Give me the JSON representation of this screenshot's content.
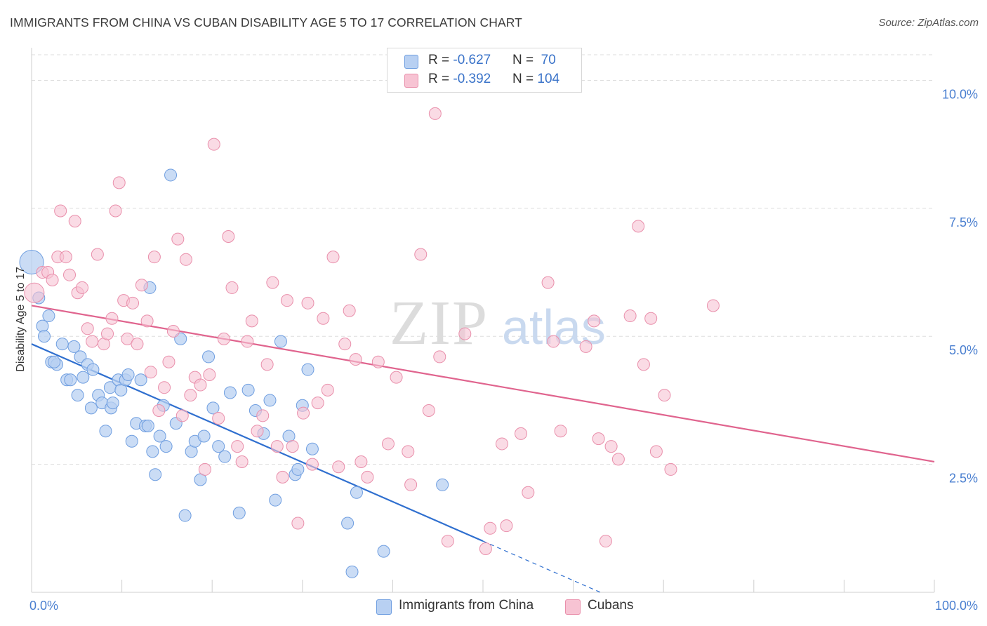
{
  "title": "IMMIGRANTS FROM CHINA VS CUBAN DISABILITY AGE 5 TO 17 CORRELATION CHART",
  "source": "Source: ZipAtlas.com",
  "watermark": {
    "zip": "ZIP",
    "atlas": "atlas"
  },
  "legend": {
    "china": {
      "r_label": "R = ",
      "r_value": "-0.627",
      "n_label": "N = ",
      "n_value": " 70"
    },
    "cuban": {
      "r_label": "R = ",
      "r_value": "-0.392",
      "n_label": "N = ",
      "n_value": "104"
    }
  },
  "bottom_legend": {
    "china": "Immigrants from China",
    "cuban": "Cubans"
  },
  "colors": {
    "china_fill": "#b8d0f2",
    "china_stroke": "#6f9ee0",
    "china_line": "#2f6fcf",
    "cuban_fill": "#f7c3d3",
    "cuban_stroke": "#e98fab",
    "cuban_line": "#e0648e",
    "tick_text": "#4a7fd0",
    "grid": "#dddddd"
  },
  "chart_data": {
    "type": "scatter",
    "title": "IMMIGRANTS FROM CHINA VS CUBAN DISABILITY AGE 5 TO 17 CORRELATION CHART",
    "xlabel": "",
    "ylabel": "Disability Age 5 to 17",
    "xlim": [
      0,
      100
    ],
    "ylim": [
      0,
      10.5
    ],
    "x_tick_labels": [
      "0.0%",
      "100.0%"
    ],
    "y_ticks": [
      2.5,
      5.0,
      7.5,
      10.0
    ],
    "y_tick_labels": [
      "2.5%",
      "5.0%",
      "7.5%",
      "10.0%"
    ],
    "grid": true,
    "legend_position": "top-center",
    "series": [
      {
        "name": "Immigrants from China",
        "r": -0.627,
        "n": 70,
        "trend": {
          "x0": 0,
          "y0": 4.85,
          "x1": 50,
          "y1": 1.0,
          "dashed_to_x": 63,
          "dashed_to_y": 0.0
        },
        "points": [
          [
            0.0,
            6.45
          ],
          [
            0.8,
            5.75
          ],
          [
            1.2,
            5.2
          ],
          [
            1.4,
            5.0
          ],
          [
            1.9,
            5.4
          ],
          [
            2.2,
            4.5
          ],
          [
            2.8,
            4.45
          ],
          [
            3.4,
            4.85
          ],
          [
            3.9,
            4.15
          ],
          [
            4.3,
            4.15
          ],
          [
            4.7,
            4.8
          ],
          [
            5.1,
            3.85
          ],
          [
            5.4,
            4.6
          ],
          [
            5.7,
            4.2
          ],
          [
            6.2,
            4.45
          ],
          [
            6.6,
            3.6
          ],
          [
            6.8,
            4.35
          ],
          [
            7.4,
            3.85
          ],
          [
            7.8,
            3.7
          ],
          [
            8.2,
            3.15
          ],
          [
            8.7,
            4.0
          ],
          [
            8.8,
            3.6
          ],
          [
            9.0,
            3.7
          ],
          [
            9.6,
            4.15
          ],
          [
            9.9,
            3.95
          ],
          [
            10.4,
            4.15
          ],
          [
            10.7,
            4.25
          ],
          [
            11.1,
            2.95
          ],
          [
            11.6,
            3.3
          ],
          [
            12.1,
            4.15
          ],
          [
            12.6,
            3.25
          ],
          [
            12.9,
            3.25
          ],
          [
            13.1,
            5.95
          ],
          [
            13.4,
            2.75
          ],
          [
            13.7,
            2.3
          ],
          [
            14.2,
            3.05
          ],
          [
            14.6,
            3.65
          ],
          [
            14.9,
            2.85
          ],
          [
            15.4,
            8.15
          ],
          [
            16.0,
            3.3
          ],
          [
            16.5,
            4.95
          ],
          [
            17.0,
            1.5
          ],
          [
            17.7,
            2.75
          ],
          [
            18.1,
            2.95
          ],
          [
            18.7,
            2.2
          ],
          [
            19.1,
            3.05
          ],
          [
            19.6,
            4.6
          ],
          [
            20.1,
            3.6
          ],
          [
            20.7,
            2.85
          ],
          [
            21.4,
            2.65
          ],
          [
            22.0,
            3.9
          ],
          [
            23.0,
            1.55
          ],
          [
            24.0,
            3.95
          ],
          [
            24.8,
            3.55
          ],
          [
            25.7,
            3.1
          ],
          [
            26.4,
            3.75
          ],
          [
            27.0,
            1.8
          ],
          [
            27.6,
            4.9
          ],
          [
            28.5,
            3.05
          ],
          [
            29.2,
            2.3
          ],
          [
            29.5,
            2.4
          ],
          [
            30.0,
            3.65
          ],
          [
            30.6,
            4.35
          ],
          [
            31.1,
            2.8
          ],
          [
            35.0,
            1.35
          ],
          [
            35.5,
            0.4
          ],
          [
            36.0,
            1.95
          ],
          [
            39.0,
            0.8
          ],
          [
            45.5,
            2.1
          ],
          [
            2.5,
            4.5
          ]
        ]
      },
      {
        "name": "Cubans",
        "r": -0.392,
        "n": 104,
        "trend": {
          "x0": 0,
          "y0": 5.6,
          "x1": 100,
          "y1": 2.55
        },
        "points": [
          [
            0.3,
            5.85
          ],
          [
            1.2,
            6.25
          ],
          [
            1.8,
            6.25
          ],
          [
            2.3,
            6.1
          ],
          [
            2.9,
            6.55
          ],
          [
            3.2,
            7.45
          ],
          [
            3.8,
            6.55
          ],
          [
            4.2,
            6.2
          ],
          [
            4.8,
            7.25
          ],
          [
            5.1,
            5.85
          ],
          [
            5.6,
            5.95
          ],
          [
            6.2,
            5.15
          ],
          [
            6.7,
            4.9
          ],
          [
            7.3,
            6.6
          ],
          [
            8.0,
            4.85
          ],
          [
            8.4,
            5.05
          ],
          [
            8.9,
            5.35
          ],
          [
            9.3,
            7.45
          ],
          [
            9.7,
            8.0
          ],
          [
            10.2,
            5.7
          ],
          [
            10.6,
            4.95
          ],
          [
            11.2,
            5.65
          ],
          [
            11.7,
            4.85
          ],
          [
            12.2,
            6.0
          ],
          [
            12.8,
            5.3
          ],
          [
            13.2,
            4.3
          ],
          [
            13.6,
            6.55
          ],
          [
            14.1,
            3.55
          ],
          [
            14.7,
            4.0
          ],
          [
            15.2,
            4.5
          ],
          [
            15.7,
            5.1
          ],
          [
            16.2,
            6.9
          ],
          [
            16.7,
            3.45
          ],
          [
            17.1,
            6.5
          ],
          [
            17.6,
            3.85
          ],
          [
            18.1,
            4.2
          ],
          [
            18.7,
            4.05
          ],
          [
            19.2,
            2.4
          ],
          [
            19.7,
            4.25
          ],
          [
            20.2,
            8.75
          ],
          [
            20.7,
            3.4
          ],
          [
            21.3,
            4.95
          ],
          [
            21.8,
            6.95
          ],
          [
            22.2,
            5.95
          ],
          [
            22.8,
            2.85
          ],
          [
            23.3,
            2.55
          ],
          [
            23.9,
            4.9
          ],
          [
            24.4,
            5.3
          ],
          [
            25.0,
            3.15
          ],
          [
            25.6,
            3.45
          ],
          [
            26.1,
            4.45
          ],
          [
            26.7,
            6.05
          ],
          [
            27.2,
            2.85
          ],
          [
            27.8,
            2.25
          ],
          [
            28.3,
            5.7
          ],
          [
            28.9,
            2.85
          ],
          [
            29.5,
            1.35
          ],
          [
            30.1,
            3.5
          ],
          [
            30.6,
            5.65
          ],
          [
            31.1,
            2.5
          ],
          [
            31.7,
            3.7
          ],
          [
            32.3,
            5.35
          ],
          [
            32.8,
            3.95
          ],
          [
            33.4,
            6.55
          ],
          [
            34.0,
            2.45
          ],
          [
            34.7,
            4.85
          ],
          [
            35.2,
            5.5
          ],
          [
            35.9,
            4.55
          ],
          [
            36.5,
            2.55
          ],
          [
            37.2,
            2.25
          ],
          [
            38.4,
            4.5
          ],
          [
            39.5,
            2.9
          ],
          [
            40.4,
            4.2
          ],
          [
            41.7,
            2.75
          ],
          [
            42.0,
            2.1
          ],
          [
            43.1,
            6.6
          ],
          [
            44.0,
            3.55
          ],
          [
            44.7,
            9.35
          ],
          [
            45.2,
            4.6
          ],
          [
            46.1,
            1.0
          ],
          [
            48.0,
            5.05
          ],
          [
            50.3,
            0.85
          ],
          [
            50.8,
            1.25
          ],
          [
            52.1,
            2.9
          ],
          [
            52.6,
            1.3
          ],
          [
            54.2,
            3.1
          ],
          [
            55.0,
            1.95
          ],
          [
            57.2,
            6.05
          ],
          [
            57.8,
            4.9
          ],
          [
            58.6,
            3.15
          ],
          [
            61.4,
            4.8
          ],
          [
            62.3,
            5.3
          ],
          [
            62.8,
            3.0
          ],
          [
            63.6,
            1.0
          ],
          [
            64.2,
            2.85
          ],
          [
            65.0,
            2.6
          ],
          [
            66.3,
            5.4
          ],
          [
            67.2,
            7.15
          ],
          [
            67.8,
            4.45
          ],
          [
            68.6,
            5.35
          ],
          [
            69.2,
            2.75
          ],
          [
            70.1,
            3.85
          ],
          [
            70.8,
            2.4
          ],
          [
            75.5,
            5.6
          ]
        ]
      }
    ]
  }
}
